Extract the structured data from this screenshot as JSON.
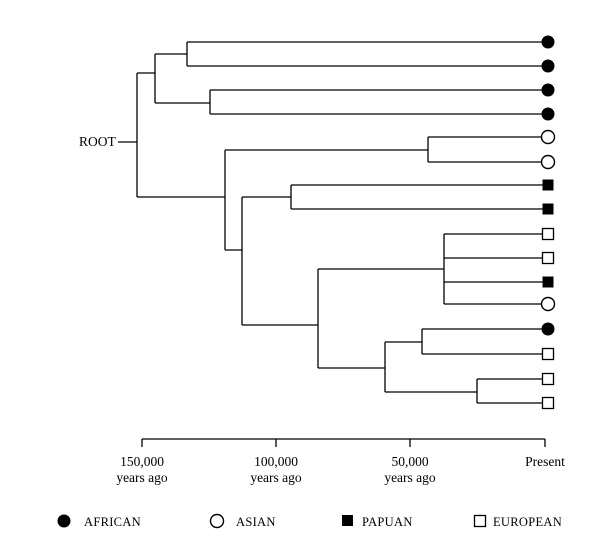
{
  "root_label": "ROOT",
  "axis": {
    "ticks": [
      {
        "line1": "150,000",
        "line2": "years ago",
        "value": 150000
      },
      {
        "line1": "100,000",
        "line2": "years ago",
        "value": 100000
      },
      {
        "line1": "50,000",
        "line2": "years ago",
        "value": 50000
      },
      {
        "line1": "Present",
        "line2": "",
        "value": 0
      }
    ]
  },
  "legend": [
    {
      "key": "african",
      "label": "AFRICAN"
    },
    {
      "key": "asian",
      "label": "ASIAN"
    },
    {
      "key": "papuan",
      "label": "PAPUAN"
    },
    {
      "key": "european",
      "label": "EUROPEAN"
    }
  ],
  "leaves": [
    "african",
    "african",
    "african",
    "african",
    "asian",
    "asian",
    "papuan",
    "papuan",
    "european",
    "european",
    "papuan",
    "asian",
    "african",
    "european",
    "european",
    "european"
  ],
  "colors": {
    "ink": "#000000",
    "background": "#ffffff"
  }
}
